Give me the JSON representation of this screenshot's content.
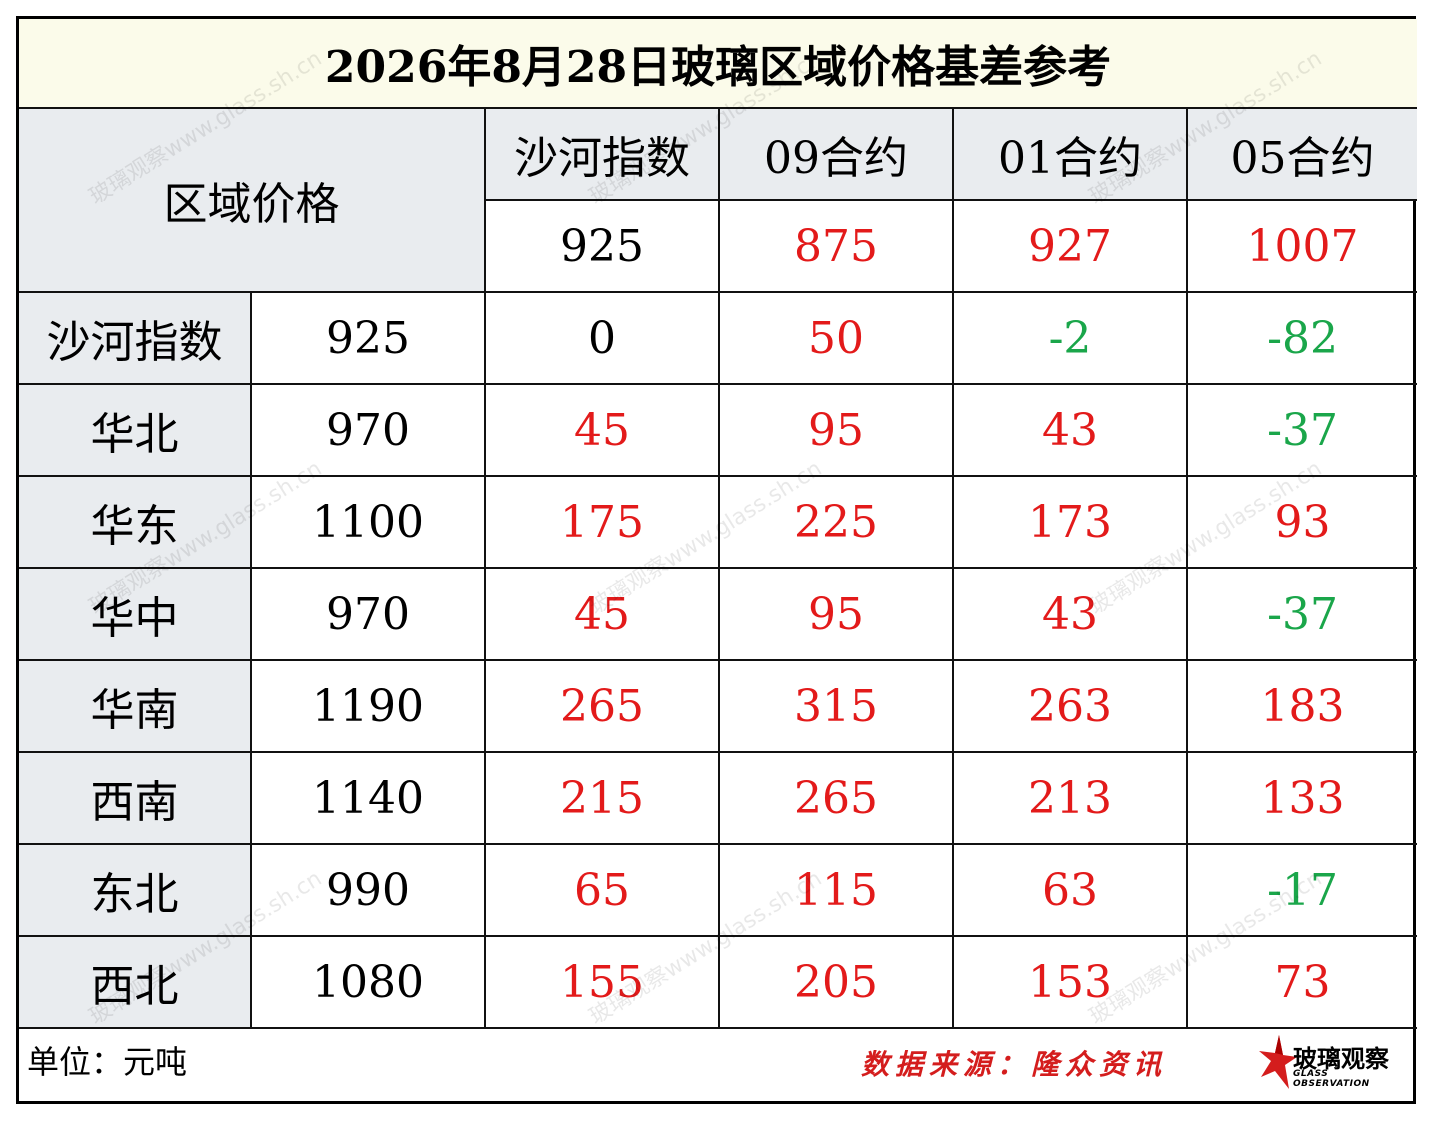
{
  "title": "2026年8月28日玻璃区域价格基差参考",
  "header": {
    "region_price": "区域价格",
    "columns": [
      "沙河指数",
      "09合约",
      "01合约",
      "05合约"
    ],
    "basis_values": [
      "925",
      "875",
      "927",
      "1007"
    ]
  },
  "rows": [
    {
      "region": "沙河指数",
      "price": "925",
      "cells": [
        "0",
        "50",
        "-2",
        "-82"
      ]
    },
    {
      "region": "华北",
      "price": "970",
      "cells": [
        "45",
        "95",
        "43",
        "-37"
      ]
    },
    {
      "region": "华东",
      "price": "1100",
      "cells": [
        "175",
        "225",
        "173",
        "93"
      ]
    },
    {
      "region": "华中",
      "price": "970",
      "cells": [
        "45",
        "95",
        "43",
        "-37"
      ]
    },
    {
      "region": "华南",
      "price": "1190",
      "cells": [
        "265",
        "315",
        "263",
        "183"
      ]
    },
    {
      "region": "西南",
      "price": "1140",
      "cells": [
        "215",
        "265",
        "213",
        "133"
      ]
    },
    {
      "region": "东北",
      "price": "990",
      "cells": [
        "65",
        "115",
        "63",
        "-17"
      ]
    },
    {
      "region": "西北",
      "price": "1080",
      "cells": [
        "155",
        "205",
        "153",
        "73"
      ]
    }
  ],
  "footer": {
    "unit": "单位：元吨",
    "source": "数据来源：隆众资讯",
    "logo_text": "玻璃观察",
    "logo_sub": "GLASS OBSERVATION"
  },
  "watermark": "玻璃观察www.glass.sh.cn",
  "colors": {
    "positive": "#e31a1a",
    "negative": "#1aa64a",
    "header_bg": "#e9ecef",
    "title_bg": "#fbfbea"
  }
}
